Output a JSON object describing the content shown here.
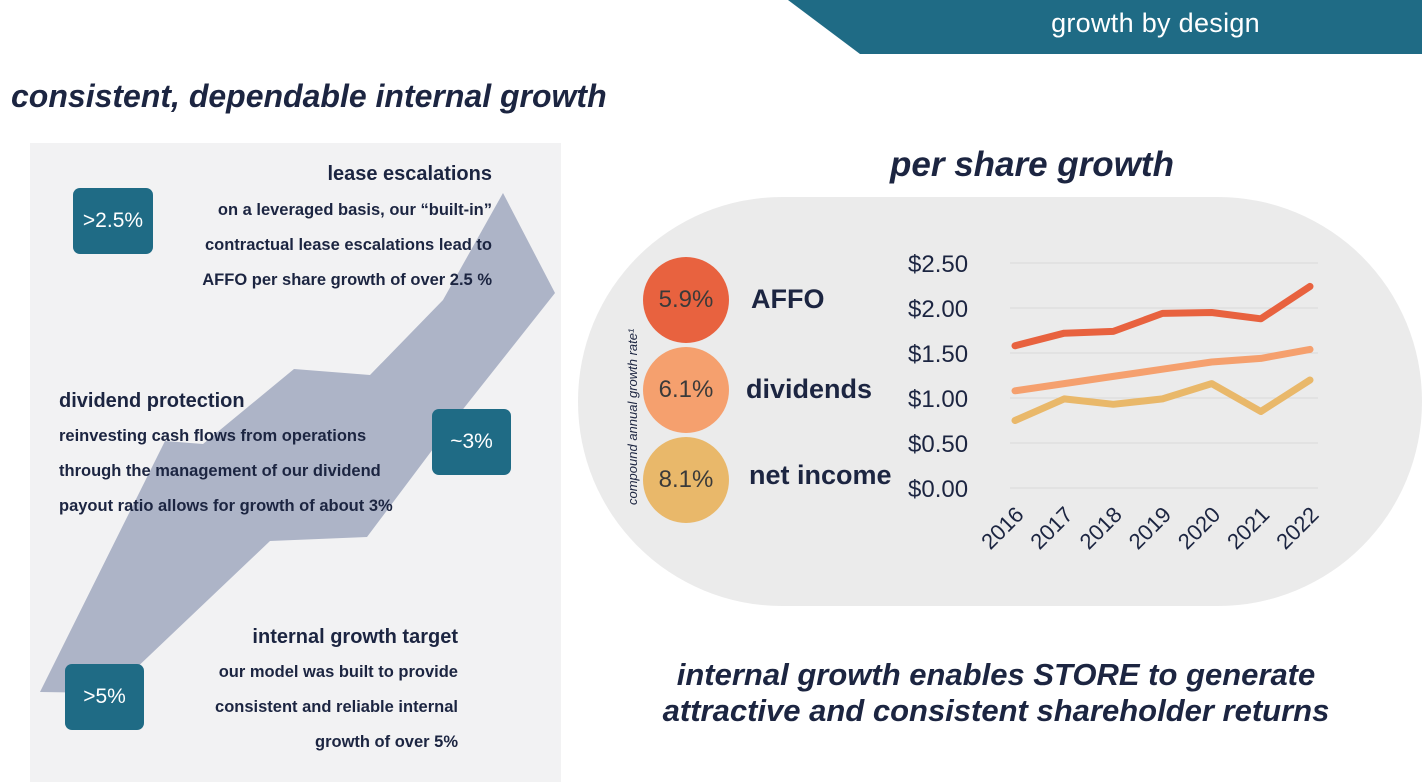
{
  "banner": {
    "text": "growth by design",
    "color": "#1f6b85"
  },
  "main_title": "consistent, dependable internal growth",
  "left_panel": {
    "blocks": [
      {
        "badge": ">2.5%",
        "title": "lease escalations",
        "lines": [
          "on a leveraged basis, our “built-in”",
          "contractual lease escalations lead to",
          "AFFO per share growth of over 2.5 %"
        ]
      },
      {
        "badge": "~3%",
        "title": "dividend protection",
        "lines": [
          "reinvesting cash flows from operations",
          "through the management of our dividend",
          "payout ratio allows for growth of about 3%"
        ]
      },
      {
        "badge": ">5%",
        "title": "internal growth target",
        "lines": [
          "our model was built to provide",
          "consistent and reliable internal",
          "growth of over 5%"
        ]
      }
    ]
  },
  "per_share": {
    "title": "per share growth",
    "cagr_label": "compound annual growth rate¹",
    "metrics": [
      {
        "value": "5.9%",
        "name": "AFFO",
        "color": "#e8623f"
      },
      {
        "value": "6.1%",
        "name": "dividends",
        "color": "#f5a06e"
      },
      {
        "value": "8.1%",
        "name": "net income",
        "color": "#e9b86a"
      }
    ]
  },
  "chart_data": {
    "type": "line",
    "x": [
      "2016",
      "2017",
      "2018",
      "2019",
      "2020",
      "2021",
      "2022"
    ],
    "yticks": [
      "$0.00",
      "$0.50",
      "$1.00",
      "$1.50",
      "$2.00",
      "$2.50"
    ],
    "ylim": [
      0,
      2.5
    ],
    "grid": true,
    "legend": "none",
    "series": [
      {
        "values": [
          1.58,
          1.72,
          1.74,
          1.94,
          1.95,
          1.88,
          2.24
        ],
        "color": "#e8623f"
      },
      {
        "values": [
          1.08,
          1.16,
          1.24,
          1.32,
          1.4,
          1.44,
          1.54
        ],
        "color": "#f5a06e"
      },
      {
        "values": [
          0.75,
          0.99,
          0.93,
          0.99,
          1.16,
          0.85,
          1.2
        ],
        "color": "#e9b86a"
      }
    ]
  },
  "footer": {
    "lines": [
      "internal growth enables STORE to generate",
      "attractive and consistent shareholder returns"
    ]
  }
}
